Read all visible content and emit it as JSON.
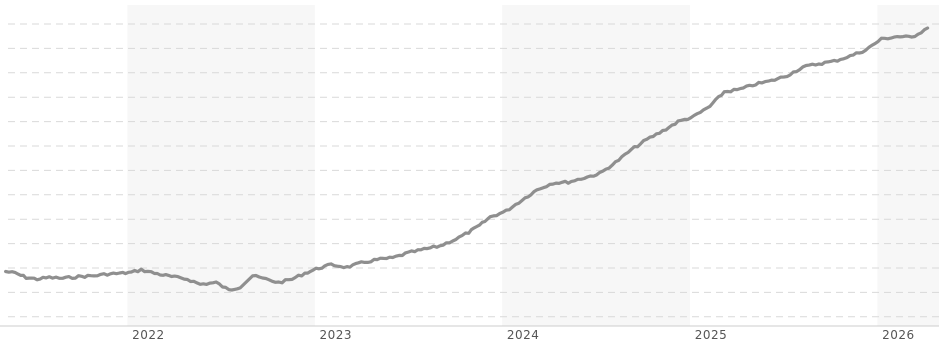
{
  "chart_data": {
    "type": "line",
    "title": "",
    "xlabel": "",
    "ylabel": "",
    "x_tick_labels": [
      "2022",
      "2023",
      "2024",
      "2025",
      "2026"
    ],
    "y_tick_labels": [],
    "grid": "horizontal dashed",
    "legend": "none",
    "shaded_year_bands": [
      "2022",
      "2024",
      "2026"
    ],
    "colors": {
      "line": "#8f8f8f",
      "grid": "#d9d9d9",
      "band": "#f7f7f7",
      "axis": "#cccccc",
      "tick_text": "#555555"
    },
    "series": [
      {
        "points": [
          [
            "2021-05-01",
            1.2
          ],
          [
            "2021-05-20",
            1.0
          ],
          [
            "2021-06-10",
            0.5
          ],
          [
            "2021-07-01",
            0.3
          ],
          [
            "2021-07-25",
            0.5
          ],
          [
            "2021-08-20",
            0.4
          ],
          [
            "2021-09-20",
            0.6
          ],
          [
            "2021-10-20",
            0.7
          ],
          [
            "2021-11-15",
            0.9
          ],
          [
            "2021-12-15",
            1.0
          ],
          [
            "2022-01-01",
            1.1
          ],
          [
            "2022-01-20",
            1.4
          ],
          [
            "2022-02-15",
            1.0
          ],
          [
            "2022-03-20",
            0.6
          ],
          [
            "2022-04-20",
            0.3
          ],
          [
            "2022-05-15",
            -0.3
          ],
          [
            "2022-06-15",
            -0.1
          ],
          [
            "2022-07-10",
            -1.0
          ],
          [
            "2022-08-01",
            -0.6
          ],
          [
            "2022-08-25",
            0.7
          ],
          [
            "2022-09-20",
            0.3
          ],
          [
            "2022-10-15",
            -0.1
          ],
          [
            "2022-11-10",
            0.3
          ],
          [
            "2022-12-05",
            1.0
          ],
          [
            "2023-01-01",
            1.6
          ],
          [
            "2023-01-25",
            2.0
          ],
          [
            "2023-02-25",
            1.7
          ],
          [
            "2023-03-25",
            2.2
          ],
          [
            "2023-04-25",
            2.6
          ],
          [
            "2023-05-25",
            2.8
          ],
          [
            "2023-06-25",
            3.4
          ],
          [
            "2023-07-25",
            3.8
          ],
          [
            "2023-08-25",
            4.2
          ],
          [
            "2023-09-25",
            5.0
          ],
          [
            "2023-10-20",
            5.8
          ],
          [
            "2023-11-10",
            6.6
          ],
          [
            "2023-12-01",
            7.6
          ],
          [
            "2024-01-01",
            8.3
          ],
          [
            "2024-02-01",
            9.6
          ],
          [
            "2024-03-01",
            10.8
          ],
          [
            "2024-04-01",
            11.6
          ],
          [
            "2024-05-01",
            11.7
          ],
          [
            "2024-06-01",
            12.2
          ],
          [
            "2024-07-01",
            12.7
          ],
          [
            "2024-08-01",
            14.0
          ],
          [
            "2024-09-01",
            15.5
          ],
          [
            "2024-10-01",
            16.7
          ],
          [
            "2024-11-01",
            17.7
          ],
          [
            "2024-12-01",
            18.8
          ],
          [
            "2025-01-01",
            19.4
          ],
          [
            "2025-02-01",
            20.6
          ],
          [
            "2025-03-01",
            22.3
          ],
          [
            "2025-04-01",
            22.6
          ],
          [
            "2025-05-01",
            23.2
          ],
          [
            "2025-06-01",
            23.6
          ],
          [
            "2025-07-01",
            24.2
          ],
          [
            "2025-08-01",
            25.2
          ],
          [
            "2025-09-01",
            25.6
          ],
          [
            "2025-10-01",
            25.9
          ],
          [
            "2025-11-01",
            26.5
          ],
          [
            "2025-12-01",
            27.2
          ],
          [
            "2026-01-01",
            28.5
          ],
          [
            "2026-02-01",
            28.8
          ],
          [
            "2026-03-01",
            28.7
          ],
          [
            "2026-04-01",
            29.8
          ]
        ]
      }
    ]
  }
}
